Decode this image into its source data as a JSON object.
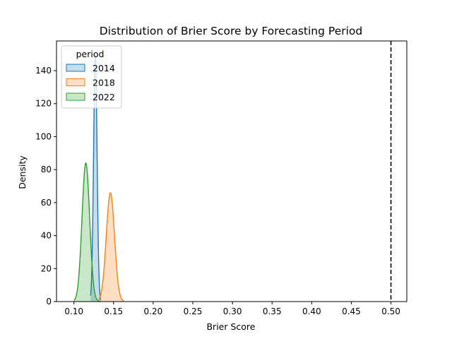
{
  "chart_data": {
    "type": "area",
    "title": "Distribution of Brier Score by Forecasting Period",
    "xlabel": "Brier Score",
    "ylabel": "Density",
    "xlim": [
      0.078,
      0.52
    ],
    "ylim": [
      0,
      158
    ],
    "x_ticks": [
      0.1,
      0.15,
      0.2,
      0.25,
      0.3,
      0.35,
      0.4,
      0.45,
      0.5
    ],
    "x_tick_labels": [
      "0.10",
      "0.15",
      "0.20",
      "0.25",
      "0.30",
      "0.35",
      "0.40",
      "0.45",
      "0.50"
    ],
    "y_ticks": [
      0,
      20,
      40,
      60,
      80,
      100,
      120,
      140
    ],
    "y_tick_labels": [
      "0",
      "20",
      "40",
      "60",
      "80",
      "100",
      "120",
      "140"
    ],
    "grid": false,
    "legend": {
      "title": "period",
      "placement": "top-left"
    },
    "reference_line": {
      "x": 0.5,
      "style": "dashed",
      "color": "#000000"
    },
    "series": [
      {
        "name": "2014",
        "color": "#1f77b4",
        "peak_x": 0.127,
        "peak_y": 150,
        "sd": 0.0022,
        "x_min": 0.121,
        "x_max": 0.134
      },
      {
        "name": "2018",
        "color": "#ff7f0e",
        "peak_x": 0.146,
        "peak_y": 66,
        "sd": 0.0052,
        "x_min": 0.131,
        "x_max": 0.163
      },
      {
        "name": "2022",
        "color": "#2ca02c",
        "peak_x": 0.115,
        "peak_y": 84,
        "sd": 0.0048,
        "x_min": 0.1,
        "x_max": 0.134
      }
    ]
  }
}
